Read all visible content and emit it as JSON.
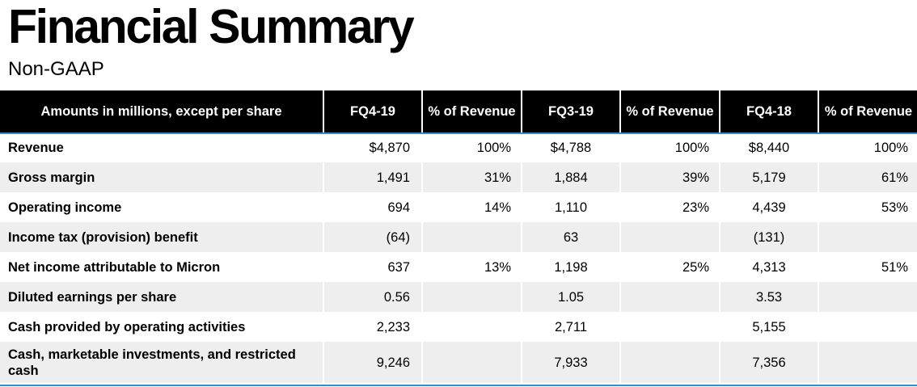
{
  "title": "Financial Summary",
  "subtitle": "Non-GAAP",
  "table": {
    "headers": [
      "Amounts in millions, except per share",
      "FQ4-19",
      "% of Revenue",
      "FQ3-19",
      "% of Revenue",
      "FQ4-18",
      "% of Revenue"
    ],
    "rows": [
      [
        "Revenue",
        "$4,870",
        "100%",
        "$4,788",
        "100%",
        "$8,440",
        "100%"
      ],
      [
        "Gross margin",
        "1,491",
        "31%",
        "1,884",
        "39%",
        "5,179",
        "61%"
      ],
      [
        "Operating income",
        "694",
        "14%",
        "1,110",
        "23%",
        "4,439",
        "53%"
      ],
      [
        "Income tax (provision) benefit",
        "(64)",
        "",
        "63",
        "",
        "(131)",
        ""
      ],
      [
        "Net income attributable to Micron",
        "637",
        "13%",
        "1,198",
        "25%",
        "4,313",
        "51%"
      ],
      [
        "Diluted earnings per share",
        "0.56",
        "",
        "1.05",
        "",
        "3.53",
        ""
      ],
      [
        "Cash provided by operating activities",
        "2,233",
        "",
        "2,711",
        "",
        "5,155",
        ""
      ],
      [
        "Cash, marketable investments, and restricted cash",
        "9,246",
        "",
        "7,933",
        "",
        "7,356",
        ""
      ]
    ]
  },
  "colors": {
    "header_bg": "#000000",
    "header_text": "#ffffff",
    "row_shade": "#eeeeee",
    "accent_rule": "#2f8fc9"
  }
}
